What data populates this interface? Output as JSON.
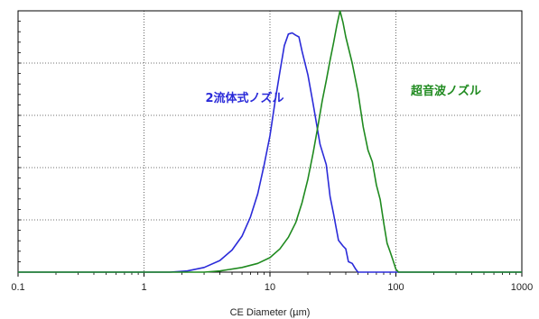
{
  "chart_data": {
    "type": "line",
    "title": "",
    "xlabel": "CE Diameter (µm)",
    "ylabel": "",
    "xscale": "log",
    "xlim": [
      0.1,
      1000
    ],
    "ylim": [
      0,
      4.5
    ],
    "x_ticks": [
      "0.1",
      "1",
      "10",
      "100",
      "1000"
    ],
    "grid": true,
    "colors": {
      "blue": "#2B2BD9",
      "green": "#1F8A1F",
      "grid": "#444444",
      "axis": "#000000"
    },
    "series": [
      {
        "name": "2流体式ノズル",
        "color": "#2B2BD9",
        "points": [
          [
            0.1,
            0
          ],
          [
            1.6,
            0
          ],
          [
            2.2,
            0.02
          ],
          [
            3,
            0.08
          ],
          [
            4,
            0.2
          ],
          [
            5,
            0.38
          ],
          [
            6,
            0.62
          ],
          [
            7,
            0.95
          ],
          [
            8,
            1.35
          ],
          [
            9,
            1.85
          ],
          [
            10,
            2.35
          ],
          [
            11,
            2.95
          ],
          [
            12,
            3.45
          ],
          [
            13,
            3.9
          ],
          [
            14,
            4.1
          ],
          [
            15,
            4.12
          ],
          [
            16,
            4.08
          ],
          [
            17,
            4.05
          ],
          [
            18,
            3.8
          ],
          [
            20,
            3.4
          ],
          [
            22,
            2.9
          ],
          [
            25,
            2.2
          ],
          [
            28,
            1.85
          ],
          [
            30,
            1.3
          ],
          [
            32,
            1.0
          ],
          [
            35,
            0.55
          ],
          [
            38,
            0.45
          ],
          [
            40,
            0.4
          ],
          [
            42,
            0.18
          ],
          [
            45,
            0.15
          ],
          [
            48,
            0.05
          ],
          [
            50,
            0
          ],
          [
            1000,
            0
          ]
        ]
      },
      {
        "name": "超音波ノズル",
        "color": "#1F8A1F",
        "points": [
          [
            0.1,
            0
          ],
          [
            3,
            0
          ],
          [
            4,
            0.02
          ],
          [
            6,
            0.08
          ],
          [
            8,
            0.15
          ],
          [
            10,
            0.25
          ],
          [
            12,
            0.4
          ],
          [
            14,
            0.6
          ],
          [
            16,
            0.85
          ],
          [
            18,
            1.2
          ],
          [
            20,
            1.6
          ],
          [
            22,
            2.05
          ],
          [
            24,
            2.5
          ],
          [
            26,
            2.95
          ],
          [
            28,
            3.3
          ],
          [
            30,
            3.65
          ],
          [
            32,
            3.95
          ],
          [
            34,
            4.25
          ],
          [
            36,
            4.5
          ],
          [
            38,
            4.3
          ],
          [
            40,
            4.05
          ],
          [
            45,
            3.6
          ],
          [
            50,
            3.1
          ],
          [
            55,
            2.5
          ],
          [
            60,
            2.1
          ],
          [
            65,
            1.9
          ],
          [
            70,
            1.5
          ],
          [
            75,
            1.25
          ],
          [
            80,
            0.85
          ],
          [
            85,
            0.5
          ],
          [
            90,
            0.35
          ],
          [
            95,
            0.2
          ],
          [
            100,
            0.05
          ],
          [
            105,
            0
          ],
          [
            1000,
            0
          ]
        ]
      }
    ]
  }
}
